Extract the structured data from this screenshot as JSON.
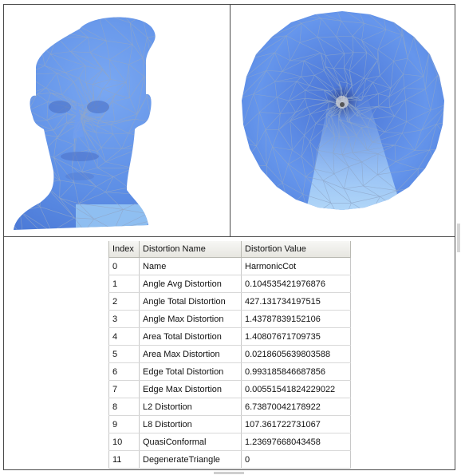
{
  "colors": {
    "mesh_base": "#5f8fe8",
    "mesh_light": "#a9d2f7",
    "mesh_edge": "#8fa6c8",
    "border": "#4a4a4a"
  },
  "table": {
    "headers": [
      "Index",
      "Distortion Name",
      "Distortion Value"
    ],
    "rows": [
      [
        "0",
        "Name",
        "HarmonicCot"
      ],
      [
        "1",
        "Angle Avg Distortion",
        "0.104535421976876"
      ],
      [
        "2",
        "Angle Total Distortion",
        "427.131734197515"
      ],
      [
        "3",
        "Angle Max Distortion",
        "1.43787839152106"
      ],
      [
        "4",
        "Area Total Distortion",
        "1.40807671709735"
      ],
      [
        "5",
        "Area Max Distortion",
        "0.0218605639803588"
      ],
      [
        "6",
        "Edge Total  Distortion",
        "0.99318584668785​6"
      ],
      [
        "7",
        "Edge Max  Distortion",
        "0.00551541824229022"
      ],
      [
        "8",
        "L2 Distortion",
        "6.73870042178922"
      ],
      [
        "9",
        "L8 Distortion",
        "107.361722731067"
      ],
      [
        "10",
        "QuasiConformal",
        "1.23697668043458"
      ],
      [
        "11",
        "DegenerateTriangle",
        "0"
      ]
    ]
  }
}
